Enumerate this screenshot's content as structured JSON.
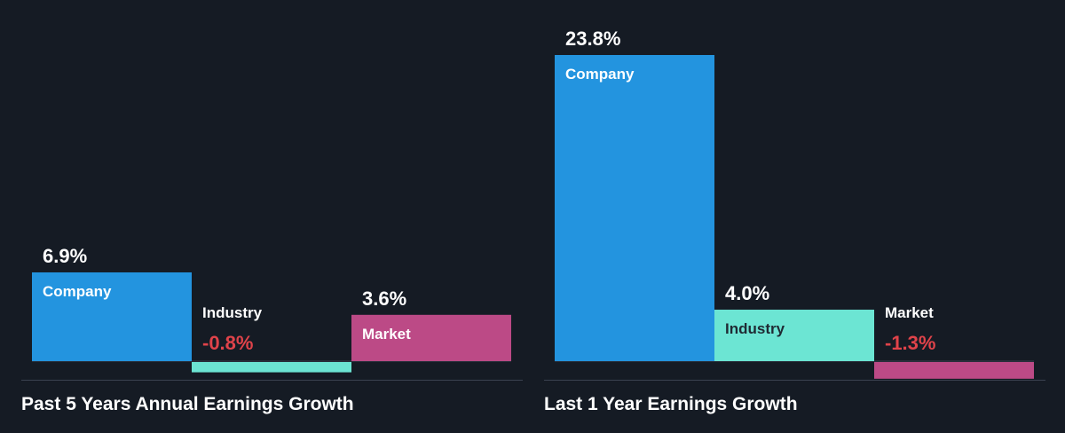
{
  "chart_data": [
    {
      "type": "bar",
      "title": "Past 5 Years Annual Earnings Growth",
      "categories": [
        "Company",
        "Industry",
        "Market"
      ],
      "values": [
        6.9,
        -0.8,
        3.6
      ],
      "value_labels": [
        "6.9%",
        "-0.8%",
        "3.6%"
      ],
      "colors": [
        "#2394df",
        "#6ce5d3",
        "#bc4a86"
      ],
      "ylim": [
        -1.3,
        23.8
      ],
      "grid": false,
      "legend": "none"
    },
    {
      "type": "bar",
      "title": "Last 1 Year Earnings Growth",
      "categories": [
        "Company",
        "Industry",
        "Market"
      ],
      "values": [
        23.8,
        4.0,
        -1.3
      ],
      "value_labels": [
        "23.8%",
        "4.0%",
        "-1.3%"
      ],
      "colors": [
        "#2394df",
        "#6ce5d3",
        "#bc4a86"
      ],
      "ylim": [
        -1.3,
        23.8
      ],
      "grid": false,
      "legend": "none"
    }
  ],
  "style": {
    "background": "#151b24",
    "text": "#ffffff",
    "negative_text": "#e0434a",
    "axis": "#3a4250"
  }
}
